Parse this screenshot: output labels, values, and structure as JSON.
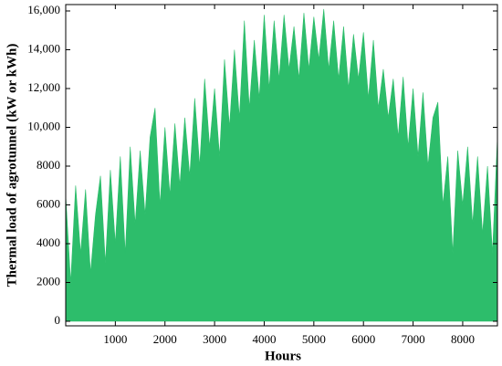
{
  "chart_data": {
    "type": "area",
    "x_label": "Hours",
    "y_label": "Thermal load of agrotunnel (kW or kWh)",
    "color": "#2dbd6b",
    "xlim": [
      0,
      8700
    ],
    "xticks": [
      1000,
      2000,
      3000,
      4000,
      5000,
      6000,
      7000,
      8000
    ],
    "ylim": [
      -235,
      16330
    ],
    "yticks": [
      0,
      2000,
      4000,
      6000,
      8000,
      {
        "value": 10000,
        "label": "10,000"
      },
      {
        "value": 12000,
        "label": "12,000"
      },
      {
        "value": 14000,
        "label": "14,000"
      },
      {
        "value": 16000,
        "label": "16,000"
      }
    ],
    "x": [
      0,
      100,
      200,
      300,
      400,
      500,
      600,
      700,
      800,
      900,
      1000,
      1100,
      1200,
      1300,
      1400,
      1500,
      1600,
      1700,
      1800,
      1900,
      2000,
      2100,
      2200,
      2300,
      2400,
      2500,
      2600,
      2700,
      2800,
      2900,
      3000,
      3100,
      3200,
      3300,
      3400,
      3500,
      3600,
      3700,
      3800,
      3900,
      4000,
      4100,
      4200,
      4300,
      4400,
      4500,
      4600,
      4700,
      4800,
      4900,
      5000,
      5100,
      5200,
      5300,
      5400,
      5500,
      5600,
      5700,
      5800,
      5900,
      6000,
      6100,
      6200,
      6300,
      6400,
      6500,
      6600,
      6700,
      6800,
      6900,
      7000,
      7100,
      7200,
      7300,
      7400,
      7500,
      7600,
      7700,
      7800,
      7900,
      8000,
      8100,
      8200,
      8300,
      8400,
      8500,
      8600,
      8700
    ],
    "values": [
      6500,
      2000,
      7000,
      3500,
      6800,
      2500,
      5500,
      7500,
      3000,
      7800,
      4000,
      8500,
      3500,
      9000,
      5000,
      8800,
      5500,
      9500,
      11000,
      6000,
      10000,
      6500,
      10200,
      7000,
      10500,
      7500,
      11500,
      8000,
      12500,
      9000,
      12000,
      8500,
      13500,
      10000,
      14000,
      10500,
      15500,
      11000,
      14500,
      11500,
      15800,
      12000,
      15500,
      12500,
      15800,
      13000,
      15200,
      12500,
      15900,
      13000,
      15700,
      13500,
      16100,
      13000,
      15500,
      12500,
      15200,
      12000,
      14800,
      12500,
      14900,
      11500,
      14500,
      11000,
      13000,
      10500,
      12500,
      9500,
      12600,
      9000,
      12000,
      8500,
      11800,
      8000,
      10500,
      11300,
      6000,
      8500,
      3500,
      8800,
      6000,
      9000,
      5000,
      8500,
      4500,
      8000,
      3500,
      9500
    ]
  }
}
